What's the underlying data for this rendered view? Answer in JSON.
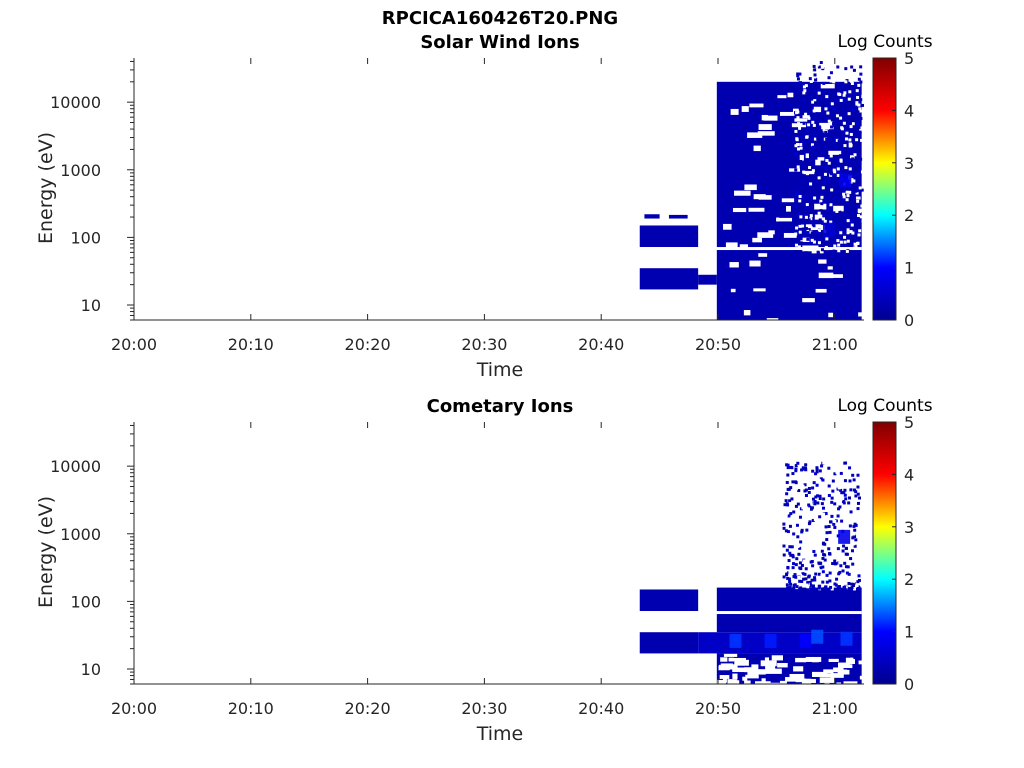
{
  "figure_title": "RPCICA160426T20.PNG",
  "colormap": [
    "#00008f",
    "#0000ff",
    "#00ffff",
    "#ffff00",
    "#ff0000",
    "#800000"
  ],
  "chart_data": [
    {
      "type": "heatmap",
      "title": "Solar Wind Ions",
      "xlabel": "Time",
      "ylabel": "Energy (eV)",
      "x_ticks": [
        "20:00",
        "20:10",
        "20:20",
        "20:30",
        "20:40",
        "20:50",
        "21:00"
      ],
      "y_ticks": [
        "10",
        "100",
        "1000",
        "10000"
      ],
      "y_scale": "log",
      "ylim": [
        6,
        45000
      ],
      "xlim_minutes": [
        0,
        62.5
      ],
      "colorbar_label": "Log Counts",
      "colorbar_ticks": [
        "0",
        "1",
        "2",
        "3",
        "4",
        "5"
      ],
      "clim": [
        0,
        5
      ],
      "blocks": [
        {
          "t0": 43.3,
          "t1": 48.3,
          "e0": 17,
          "e1": 35,
          "v": 0.3
        },
        {
          "t0": 43.3,
          "t1": 48.3,
          "e0": 72,
          "e1": 150,
          "v": 0.3
        },
        {
          "t0": 48.3,
          "t1": 49.9,
          "e0": 20,
          "e1": 28,
          "v": 0.3
        },
        {
          "t0": 43.7,
          "t1": 45.0,
          "e0": 190,
          "e1": 220,
          "v": 0.3
        },
        {
          "t0": 45.8,
          "t1": 47.4,
          "e0": 190,
          "e1": 215,
          "v": 0.3
        },
        {
          "t0": 49.9,
          "t1": 62.3,
          "e0": 6,
          "e1": 20000,
          "v": 0.3
        }
      ],
      "hot_spots": [
        {
          "t": 60.9,
          "e": 700,
          "v": 0.8
        },
        {
          "t": 59.5,
          "e": 130,
          "v": 0.6
        }
      ],
      "speckle_region": {
        "t0": 56.5,
        "t1": 62.3,
        "e0": 60,
        "e1": 45000
      }
    },
    {
      "type": "heatmap",
      "title": "Cometary Ions",
      "xlabel": "Time",
      "ylabel": "Energy (eV)",
      "x_ticks": [
        "20:00",
        "20:10",
        "20:20",
        "20:30",
        "20:40",
        "20:50",
        "21:00"
      ],
      "y_ticks": [
        "10",
        "100",
        "1000",
        "10000"
      ],
      "y_scale": "log",
      "ylim": [
        6,
        45000
      ],
      "xlim_minutes": [
        0,
        62.5
      ],
      "colorbar_label": "Log Counts",
      "colorbar_ticks": [
        "0",
        "1",
        "2",
        "3",
        "4",
        "5"
      ],
      "clim": [
        0,
        5
      ],
      "blocks": [
        {
          "t0": 43.3,
          "t1": 48.3,
          "e0": 17,
          "e1": 35,
          "v": 0.3
        },
        {
          "t0": 43.3,
          "t1": 48.3,
          "e0": 72,
          "e1": 150,
          "v": 0.3
        },
        {
          "t0": 48.3,
          "t1": 62.3,
          "e0": 17,
          "e1": 35,
          "v": 0.5
        },
        {
          "t0": 49.9,
          "t1": 62.3,
          "e0": 35,
          "e1": 160,
          "v": 0.3
        },
        {
          "t0": 49.9,
          "t1": 62.3,
          "e0": 6,
          "e1": 17,
          "v": 0.3
        }
      ],
      "hot_spots": [
        {
          "t": 51.5,
          "e": 26,
          "v": 1.2
        },
        {
          "t": 54.5,
          "e": 26,
          "v": 1.1
        },
        {
          "t": 57.5,
          "e": 26,
          "v": 1.0
        },
        {
          "t": 58.5,
          "e": 30,
          "v": 1.3
        },
        {
          "t": 61.0,
          "e": 28,
          "v": 1.2
        },
        {
          "t": 60.8,
          "e": 900,
          "v": 0.8
        }
      ],
      "speckle_region": {
        "t0": 55.5,
        "t1": 62.0,
        "e0": 160,
        "e1": 12000
      }
    }
  ]
}
